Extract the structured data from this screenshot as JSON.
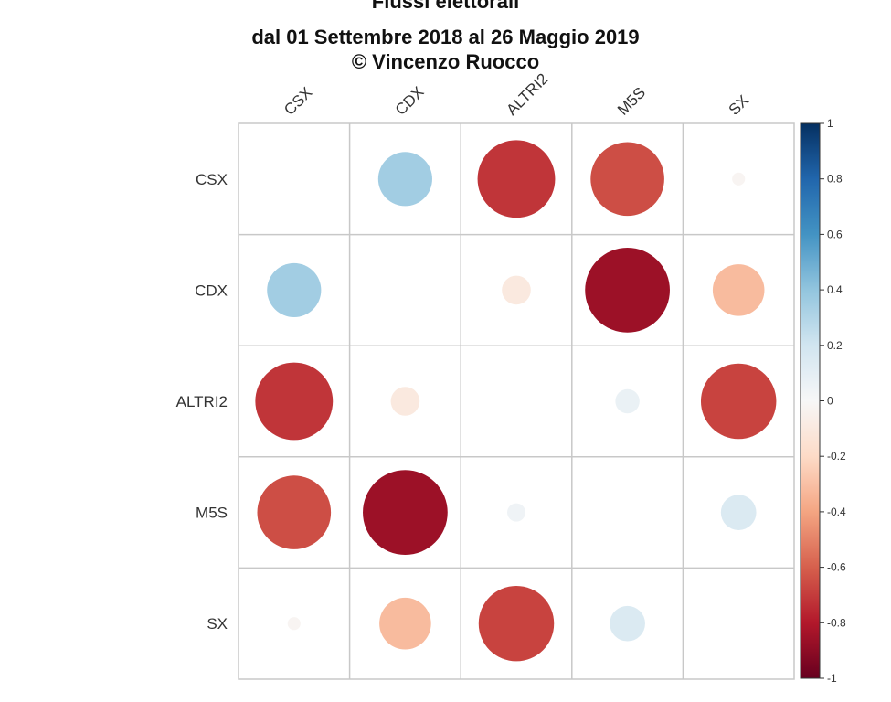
{
  "chart_data": {
    "type": "heatmap",
    "title": "Flussi elettorali",
    "subtitle": "dal 01 Settembre 2018 al 26 Maggio 2019",
    "credit": "© Vincenzo Ruocco",
    "rows": [
      "CSX",
      "CDX",
      "ALTRI2",
      "M5S",
      "SX"
    ],
    "columns": [
      "CSX",
      "CDX",
      "ALTRI2",
      "M5S",
      "SX"
    ],
    "values": [
      [
        null,
        0.35,
        -0.72,
        -0.65,
        -0.02
      ],
      [
        0.35,
        null,
        -0.1,
        -0.86,
        -0.32
      ],
      [
        -0.72,
        -0.1,
        null,
        0.07,
        -0.68
      ],
      [
        -0.65,
        -0.86,
        0.04,
        null,
        0.15
      ],
      [
        -0.02,
        -0.32,
        -0.68,
        0.15,
        null
      ]
    ],
    "colorbar": {
      "min": -1,
      "max": 1,
      "ticks": [
        "1",
        "0.8",
        "0.6",
        "0.4",
        "0.2",
        "0",
        "-0.2",
        "-0.4",
        "-0.6",
        "-0.8",
        "-1"
      ]
    },
    "colors": {
      "negative_end": "#67001f",
      "neutral": "#f7f7f7",
      "positive_end": "#053061",
      "grid": "#c8c8c8"
    }
  }
}
